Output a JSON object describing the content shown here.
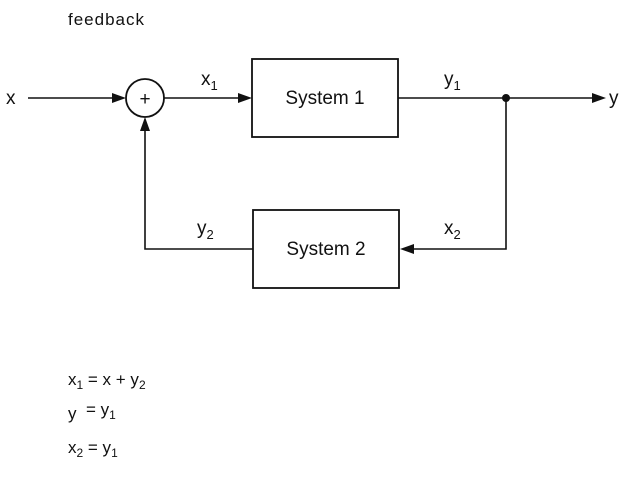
{
  "title": "feedback",
  "signals": {
    "input_x": "x",
    "x1": "x",
    "x1_sub": "1",
    "y1": "y",
    "y1_sub": "1",
    "output_y": "y",
    "x2": "x",
    "x2_sub": "2",
    "y2": "y",
    "y2_sub": "2"
  },
  "summer": {
    "symbol": "+"
  },
  "blocks": {
    "system1": "System 1",
    "system2": "System 2"
  },
  "equations": [
    {
      "lhs": "x",
      "lhs_sub": "1",
      "rhs": " = x + y",
      "rhs_sub": "2"
    },
    {
      "lhs": "y",
      "lhs_sub": "",
      "rhs": "  = y",
      "rhs_sub": "1"
    },
    {
      "lhs": "x",
      "lhs_sub": "2",
      "rhs": " = y",
      "rhs_sub": "1"
    }
  ]
}
